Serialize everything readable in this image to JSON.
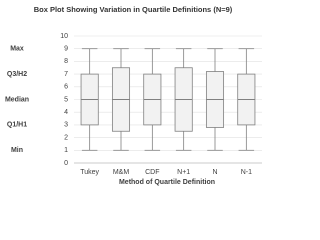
{
  "chart_data": {
    "type": "box",
    "title": "Box Plot Showing Variation in Quartile Definitions (N=9)",
    "x_label": "Method of Quartile Definition",
    "categories": [
      "Tukey",
      "M&M",
      "CDF",
      "N+1",
      "N",
      "N-1"
    ],
    "min": [
      1,
      1,
      1,
      1,
      1,
      1
    ],
    "q1": [
      3,
      2.5,
      3,
      2.5,
      2.8,
      3
    ],
    "median": [
      5,
      5,
      5,
      5,
      5,
      5
    ],
    "q3": [
      7,
      7.5,
      7,
      7.5,
      7.2,
      7
    ],
    "max": [
      9,
      9,
      9,
      9,
      9,
      9
    ],
    "color": "#f2f2f2",
    "edge_color": "#808080",
    "ylim": [
      0,
      10
    ],
    "yticks": [
      0,
      1,
      2,
      3,
      4,
      5,
      6,
      7,
      8,
      9,
      10
    ],
    "grid": true,
    "annotations": [
      {
        "text": "Max",
        "y": 9
      },
      {
        "text": "Q3/H2",
        "y": 7
      },
      {
        "text": "Median",
        "y": 5
      },
      {
        "text": "Q1/H1",
        "y": 3
      },
      {
        "text": "Min",
        "y": 1
      }
    ]
  }
}
